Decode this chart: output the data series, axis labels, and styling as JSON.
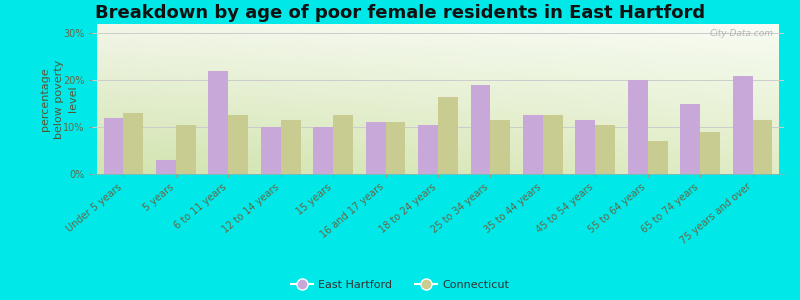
{
  "title": "Breakdown by age of poor female residents in East Hartford",
  "ylabel": "percentage\nbelow poverty\nlevel",
  "categories": [
    "Under 5 years",
    "5 years",
    "6 to 11 years",
    "12 to 14 years",
    "15 years",
    "16 and 17 years",
    "18 to 24 years",
    "25 to 34 years",
    "35 to 44 years",
    "45 to 54 years",
    "55 to 64 years",
    "65 to 74 years",
    "75 years and over"
  ],
  "east_hartford": [
    12,
    3,
    22,
    10,
    10,
    11,
    10.5,
    19,
    12.5,
    11.5,
    20,
    15,
    21
  ],
  "connecticut": [
    13,
    10.5,
    12.5,
    11.5,
    12.5,
    11,
    16.5,
    11.5,
    12.5,
    10.5,
    7,
    9,
    11.5
  ],
  "bar_color_eh": "#c8a8d8",
  "bar_color_ct": "#c8cc90",
  "fig_bg": "#00e8e8",
  "yticks": [
    0,
    10,
    20,
    30
  ],
  "ytick_labels": [
    "0%",
    "10%",
    "20%",
    "30%"
  ],
  "ylim": [
    0,
    32
  ],
  "title_fontsize": 13,
  "axis_label_fontsize": 8,
  "tick_fontsize": 7,
  "legend_labels": [
    "East Hartford",
    "Connecticut"
  ],
  "watermark": "City-Data.com",
  "bar_width": 0.38
}
